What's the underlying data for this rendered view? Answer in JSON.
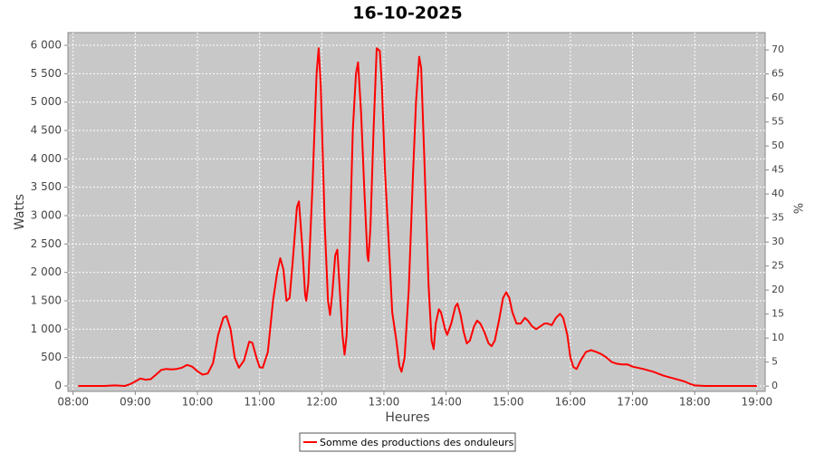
{
  "chart_data": {
    "type": "line",
    "title": "16-10-2025",
    "xlabel": "Heures",
    "ylabel": "Watts",
    "y2label": "%",
    "x": [
      "08:05",
      "08:30",
      "08:40",
      "08:50",
      "08:55",
      "09:00",
      "09:05",
      "09:10",
      "09:15",
      "09:20",
      "09:25",
      "09:30",
      "09:35",
      "09:40",
      "09:45",
      "09:50",
      "09:55",
      "10:00",
      "10:05",
      "10:10",
      "10:15",
      "10:20",
      "10:25",
      "10:28",
      "10:32",
      "10:36",
      "10:40",
      "10:45",
      "10:50",
      "10:53",
      "10:57",
      "11:00",
      "11:03",
      "11:08",
      "11:13",
      "11:17",
      "11:20",
      "11:23",
      "11:26",
      "11:29",
      "11:32",
      "11:36",
      "11:38",
      "11:41",
      "11:44",
      "11:45",
      "11:47",
      "11:51",
      "11:55",
      "11:57",
      "11:59",
      "12:03",
      "12:06",
      "12:08",
      "12:10",
      "12:13",
      "12:15",
      "12:17",
      "12:20",
      "12:22",
      "12:24",
      "12:27",
      "12:30",
      "12:33",
      "12:35",
      "12:38",
      "12:41",
      "12:44",
      "12:45",
      "12:47",
      "12:50",
      "12:53",
      "12:56",
      "12:58",
      "13:01",
      "13:05",
      "13:08",
      "13:12",
      "13:15",
      "13:17",
      "13:20",
      "13:24",
      "13:28",
      "13:31",
      "13:34",
      "13:36",
      "13:39",
      "13:43",
      "13:46",
      "13:48",
      "13:50",
      "13:53",
      "13:55",
      "13:59",
      "14:01",
      "14:05",
      "14:09",
      "14:11",
      "14:14",
      "14:17",
      "14:20",
      "14:23",
      "14:27",
      "14:30",
      "14:33",
      "14:37",
      "14:41",
      "14:44",
      "14:47",
      "14:51",
      "14:55",
      "14:58",
      "15:01",
      "15:04",
      "15:08",
      "15:12",
      "15:16",
      "15:19",
      "15:23",
      "15:27",
      "15:31",
      "15:35",
      "15:38",
      "15:42",
      "15:46",
      "15:50",
      "15:53",
      "15:57",
      "16:00",
      "16:03",
      "16:06",
      "16:10",
      "16:15",
      "16:20",
      "16:25",
      "16:30",
      "16:35",
      "16:40",
      "16:45",
      "16:50",
      "16:55",
      "17:00",
      "17:10",
      "17:20",
      "17:30",
      "17:40",
      "17:50",
      "17:55",
      "18:00",
      "18:10",
      "18:30",
      "19:00"
    ],
    "series": [
      {
        "name": "Somme des productions des onduleurs",
        "color": "#ff0000",
        "values": [
          0,
          0,
          10,
          0,
          30,
          80,
          130,
          110,
          120,
          200,
          280,
          300,
          290,
          300,
          320,
          370,
          340,
          260,
          200,
          220,
          400,
          900,
          1200,
          1230,
          1000,
          500,
          320,
          450,
          780,
          760,
          500,
          330,
          320,
          600,
          1500,
          2000,
          2250,
          2050,
          1500,
          1550,
          2200,
          3150,
          3250,
          2500,
          1600,
          1500,
          1800,
          3500,
          5500,
          5950,
          5300,
          2800,
          1500,
          1250,
          1600,
          2300,
          2400,
          1800,
          900,
          550,
          900,
          2500,
          4500,
          5500,
          5700,
          4800,
          3500,
          2300,
          2200,
          2800,
          4500,
          5950,
          5900,
          5300,
          3800,
          2400,
          1300,
          800,
          350,
          250,
          500,
          1700,
          3700,
          5000,
          5800,
          5600,
          4000,
          1800,
          800,
          650,
          1100,
          1350,
          1300,
          1000,
          900,
          1100,
          1400,
          1450,
          1250,
          950,
          750,
          800,
          1050,
          1150,
          1100,
          950,
          750,
          700,
          800,
          1150,
          1550,
          1650,
          1550,
          1300,
          1100,
          1100,
          1200,
          1150,
          1050,
          1000,
          1050,
          1100,
          1100,
          1070,
          1200,
          1270,
          1200,
          900,
          500,
          330,
          300,
          450,
          600,
          630,
          600,
          560,
          500,
          420,
          390,
          380,
          380,
          340,
          300,
          250,
          180,
          130,
          80,
          40,
          10,
          0,
          0,
          0
        ]
      }
    ],
    "xlim": [
      "07:55",
      "19:08"
    ],
    "xticks": [
      "08:00",
      "09:00",
      "10:00",
      "11:00",
      "12:00",
      "13:00",
      "14:00",
      "15:00",
      "16:00",
      "17:00",
      "18:00",
      "19:00"
    ],
    "ylim": [
      -96,
      6224
    ],
    "yticks": [
      0,
      500,
      {
        "value": 1000,
        "label": "1 000"
      },
      {
        "value": 1500,
        "label": "1 500"
      },
      {
        "value": 2000,
        "label": "2 000"
      },
      {
        "value": 2500,
        "label": "2 500"
      },
      {
        "value": 3000,
        "label": "3 000"
      },
      {
        "value": 3500,
        "label": "3 500"
      },
      {
        "value": 4000,
        "label": "4 000"
      },
      {
        "value": 4500,
        "label": "4 500"
      },
      {
        "value": 5000,
        "label": "5 000"
      },
      {
        "value": 5500,
        "label": "5 500"
      },
      {
        "value": 6000,
        "label": "6 000"
      }
    ],
    "y2lim": [
      -1.1,
      73.6
    ],
    "y2ticks": [
      0,
      5,
      10,
      15,
      20,
      25,
      30,
      35,
      40,
      45,
      50,
      55,
      60,
      65,
      70
    ],
    "grid": true,
    "legend": "bottom"
  }
}
